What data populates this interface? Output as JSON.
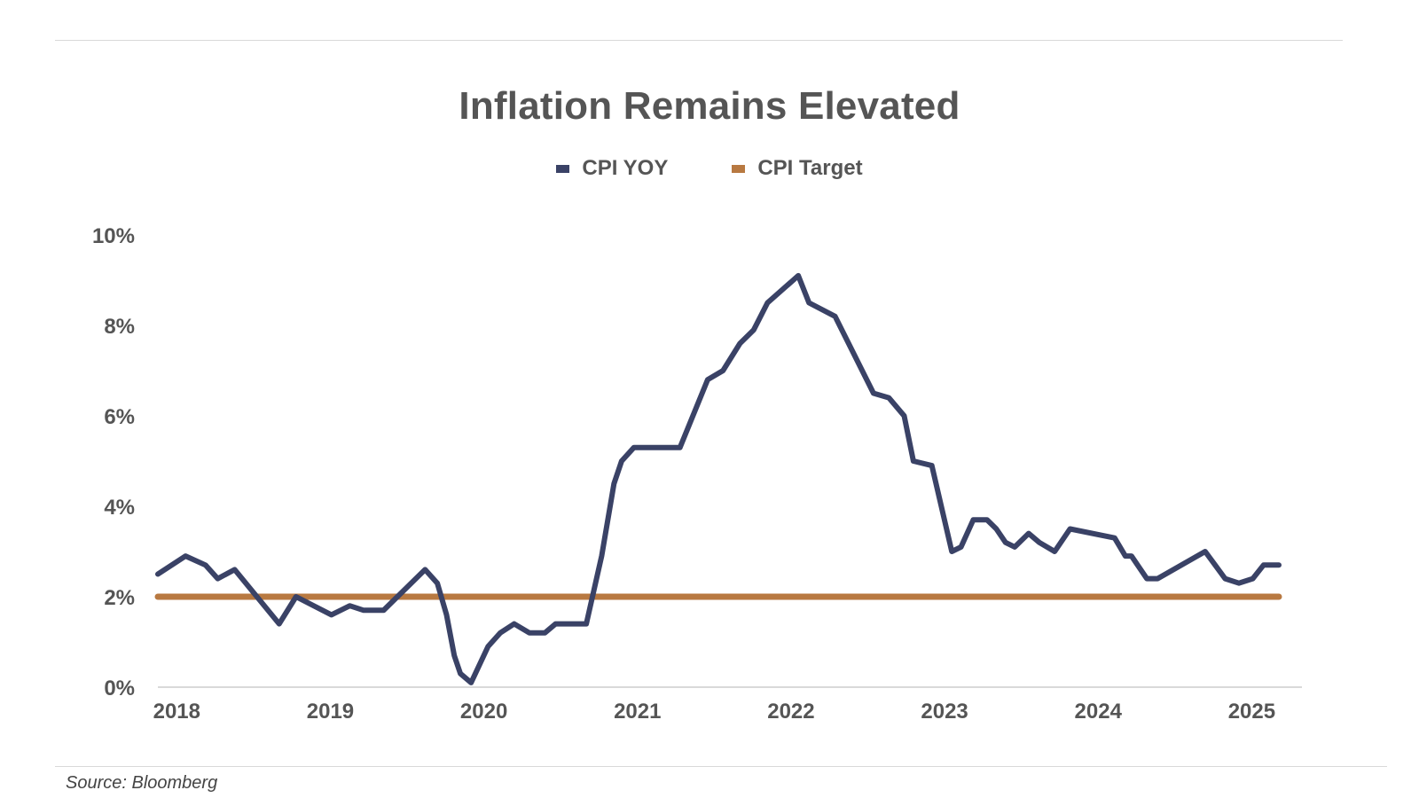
{
  "source_note": "Source: Bloomberg",
  "chart_data": {
    "type": "line",
    "title": "Inflation Remains Elevated",
    "xlabel": "",
    "ylabel": "",
    "ylim": [
      0,
      10
    ],
    "y_ticks": [
      "0%",
      "2%",
      "4%",
      "6%",
      "8%",
      "10%"
    ],
    "x_ticks": [
      "2018",
      "2019",
      "2020",
      "2021",
      "2022",
      "2023",
      "2024",
      "2025"
    ],
    "xlim": [
      2017.9,
      2025.35
    ],
    "grid": false,
    "legend_position": "top-center",
    "series": [
      {
        "name": "CPI YOY",
        "color": "#3a4266",
        "x": [
          2017.9,
          2018.08,
          2018.21,
          2018.29,
          2018.4,
          2018.69,
          2018.8,
          2019.03,
          2019.15,
          2019.24,
          2019.37,
          2019.64,
          2019.72,
          2019.78,
          2019.83,
          2019.87,
          2019.94,
          2020.05,
          2020.13,
          2020.22,
          2020.32,
          2020.42,
          2020.49,
          2020.55,
          2020.69,
          2020.79,
          2020.87,
          2020.92,
          2021.0,
          2021.3,
          2021.48,
          2021.58,
          2021.69,
          2021.78,
          2021.87,
          2022.07,
          2022.14,
          2022.31,
          2022.56,
          2022.66,
          2022.76,
          2022.82,
          2022.94,
          2023.07,
          2023.13,
          2023.21,
          2023.3,
          2023.36,
          2023.42,
          2023.48,
          2023.57,
          2023.64,
          2023.74,
          2023.84,
          2024.13,
          2024.2,
          2024.24,
          2024.34,
          2024.41,
          2024.72,
          2024.85,
          2024.94,
          2025.03,
          2025.1,
          2025.2
        ],
        "values": [
          2.5,
          2.9,
          2.7,
          2.4,
          2.6,
          1.4,
          2.0,
          1.6,
          1.8,
          1.7,
          1.7,
          2.6,
          2.3,
          1.6,
          0.7,
          0.3,
          0.1,
          0.9,
          1.2,
          1.4,
          1.2,
          1.2,
          1.4,
          1.4,
          1.4,
          2.9,
          4.5,
          5.0,
          5.3,
          5.3,
          6.8,
          7.0,
          7.6,
          7.9,
          8.5,
          9.1,
          8.5,
          8.2,
          6.5,
          6.4,
          6.0,
          5.0,
          4.9,
          3.0,
          3.1,
          3.7,
          3.7,
          3.5,
          3.2,
          3.1,
          3.4,
          3.2,
          3.0,
          3.5,
          3.3,
          2.9,
          2.9,
          2.4,
          2.4,
          3.0,
          2.4,
          2.3,
          2.4,
          2.7,
          2.7
        ]
      },
      {
        "name": "CPI Target",
        "color": "#b87941",
        "x": [
          2017.9,
          2025.2
        ],
        "values": [
          2.0,
          2.0
        ]
      }
    ]
  }
}
